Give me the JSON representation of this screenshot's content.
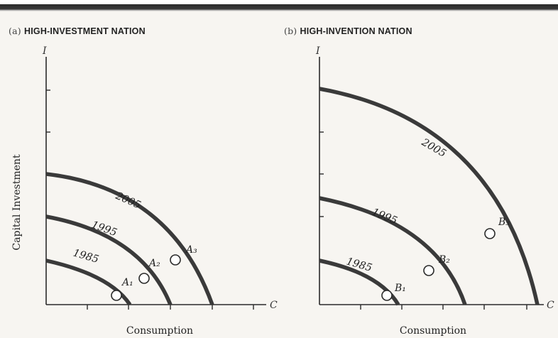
{
  "panels": {
    "a": {
      "paren": "(a)",
      "title": "HIGH-INVESTMENT NATION",
      "y_axis_letter": "I",
      "x_axis_letter": "C",
      "x_title": "Consumption",
      "curves": [
        {
          "year": "1985",
          "point": "A₁"
        },
        {
          "year": "1995",
          "point": "A₂"
        },
        {
          "year": "2005",
          "point": "A₃"
        }
      ]
    },
    "b": {
      "paren": "(b)",
      "title": "HIGH-INVENTION NATION",
      "y_axis_letter": "I",
      "x_axis_letter": "C",
      "x_title": "Consumption",
      "curves": [
        {
          "year": "1985",
          "point": "B₁"
        },
        {
          "year": "1995",
          "point": "B₂"
        },
        {
          "year": "2005",
          "point": "B₃"
        }
      ]
    }
  },
  "y_title": "Capital Investment"
}
